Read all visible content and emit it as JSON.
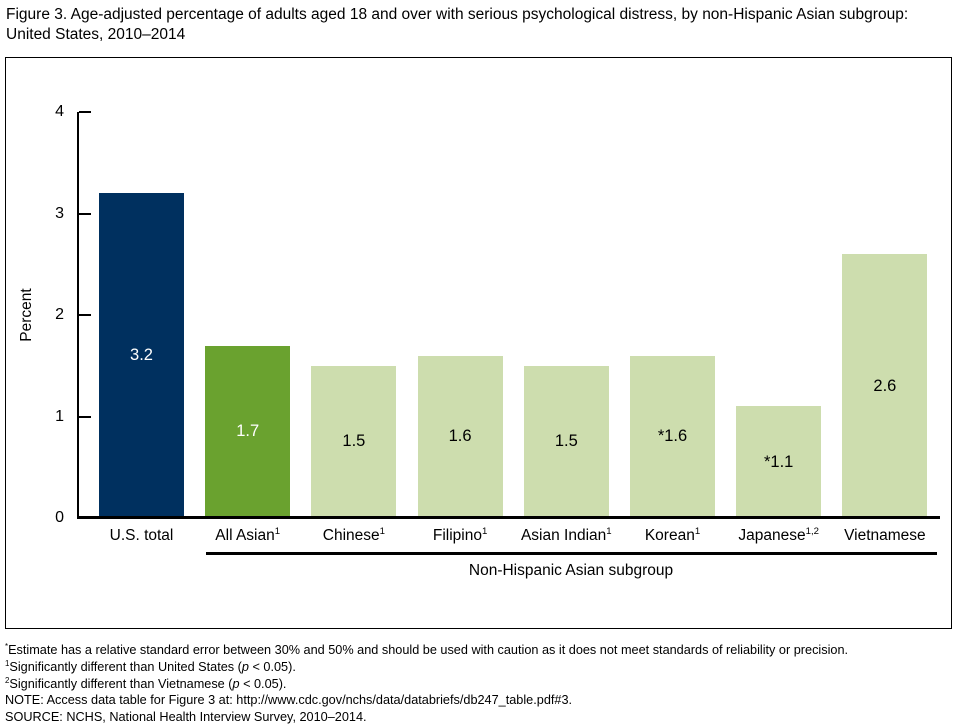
{
  "title": "Figure 3. Age-adjusted percentage of adults aged 18 and over with serious psychological distress, by non-Hispanic Asian subgroup: United States, 2010–2014",
  "chart_data": {
    "type": "bar",
    "title": "Figure 3. Age-adjusted percentage of adults aged 18 and over with serious psychological distress, by non-Hispanic Asian subgroup: United States, 2010–2014",
    "ylabel": "Percent",
    "group_axis_label": "Non-Hispanic Asian subgroup",
    "ylim": [
      0,
      4
    ],
    "yticks": [
      0,
      1,
      2,
      3,
      4
    ],
    "grid": "off",
    "categories": [
      "U.S. total",
      "All Asian",
      "Chinese",
      "Filipino",
      "Asian Indian",
      "Korean",
      "Japanese",
      "Vietnamese"
    ],
    "values": [
      3.2,
      1.7,
      1.5,
      1.6,
      1.5,
      1.6,
      1.1,
      2.6
    ],
    "colors": {
      "us_total": "#00305f",
      "all_asian": "#6aa22f",
      "subgroup": "#cdddae"
    },
    "bars": [
      {
        "category": "U.S. total",
        "sup": "",
        "value": 3.2,
        "label": "3.2",
        "color": "#00305f",
        "label_color": "#ffffff",
        "in_subgroup": false
      },
      {
        "category": "All Asian",
        "sup": "1",
        "value": 1.7,
        "label": "1.7",
        "color": "#6aa22f",
        "label_color": "#ffffff",
        "in_subgroup": true
      },
      {
        "category": "Chinese",
        "sup": "1",
        "value": 1.5,
        "label": "1.5",
        "color": "#cdddae",
        "label_color": "#000000",
        "in_subgroup": true
      },
      {
        "category": "Filipino",
        "sup": "1",
        "value": 1.6,
        "label": "1.6",
        "color": "#cdddae",
        "label_color": "#000000",
        "in_subgroup": true
      },
      {
        "category": "Asian Indian",
        "sup": "1",
        "value": 1.5,
        "label": "1.5",
        "color": "#cdddae",
        "label_color": "#000000",
        "in_subgroup": true
      },
      {
        "category": "Korean",
        "sup": "1",
        "value": 1.6,
        "label": "*1.6",
        "color": "#cdddae",
        "label_color": "#000000",
        "in_subgroup": true
      },
      {
        "category": "Japanese",
        "sup": "1,2",
        "value": 1.1,
        "label": "*1.1",
        "color": "#cdddae",
        "label_color": "#000000",
        "in_subgroup": true
      },
      {
        "category": "Vietnamese",
        "sup": "",
        "value": 2.6,
        "label": "2.6",
        "color": "#cdddae",
        "label_color": "#000000",
        "in_subgroup": true
      }
    ]
  },
  "footnotes": [
    {
      "sup": "*",
      "pre": "Estimate has a relative standard error between 30% and 50% and should be used with caution as it does not meet standards of reliability or precision.",
      "italic": "",
      "post": ""
    },
    {
      "sup": "1",
      "pre": "Significantly different than United States (",
      "italic": "p",
      "post": " < 0.05)."
    },
    {
      "sup": "2",
      "pre": "Significantly different than Vietnamese (",
      "italic": "p",
      "post": " < 0.05)."
    },
    {
      "sup": "",
      "pre": "NOTE: Access data table for Figure 3 at: http://www.cdc.gov/nchs/data/databriefs/db247_table.pdf#3.",
      "italic": "",
      "post": ""
    },
    {
      "sup": "",
      "pre": "SOURCE: NCHS, National Health Interview Survey, 2010–2014.",
      "italic": "",
      "post": ""
    }
  ]
}
